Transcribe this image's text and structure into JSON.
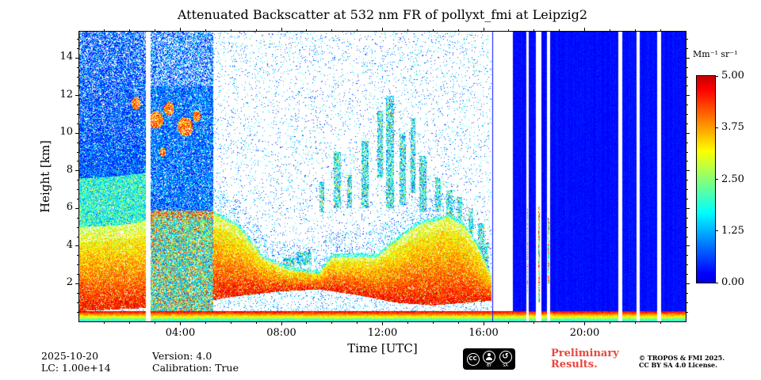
{
  "chart_data": {
    "type": "heatmap",
    "title": "Attenuated Backscatter at 532 nm FR of pollyxt_fmi at Leipzig2",
    "xlabel": "Time [UTC]",
    "ylabel": "Height [km]",
    "x_range_hours": [
      0,
      24
    ],
    "y_range_km": [
      0,
      15.4
    ],
    "x_major_ticks": [
      {
        "hour": 4,
        "label": "04:00"
      },
      {
        "hour": 8,
        "label": "08:00"
      },
      {
        "hour": 12,
        "label": "12:00"
      },
      {
        "hour": 16,
        "label": "16:00"
      },
      {
        "hour": 20,
        "label": "20:00"
      }
    ],
    "x_minor_step": 1,
    "y_major_ticks": [
      2,
      4,
      6,
      8,
      10,
      12,
      14
    ],
    "y_minor_step": 0.5,
    "colorbar": {
      "label": "Mm⁻¹ sr⁻¹",
      "min": 0,
      "max": 5,
      "ticks": [
        0,
        1.25,
        2.5,
        3.75,
        5
      ],
      "colormap": "jet-like (blue→cyan→green→yellow→orange→red)"
    },
    "features": {
      "surface_layer_top_km": 0.55,
      "aerosol_top_km": [
        [
          0,
          5.0
        ],
        [
          1.5,
          5.1
        ],
        [
          2.6,
          5.3
        ],
        [
          2.82,
          5.9
        ],
        [
          5.3,
          5.9
        ],
        [
          6.3,
          5.2
        ],
        [
          7.3,
          3.5
        ],
        [
          8.3,
          2.9
        ],
        [
          9.5,
          2.7
        ],
        [
          10.0,
          3.6
        ],
        [
          11.8,
          3.6
        ],
        [
          12.5,
          4.4
        ],
        [
          13.4,
          5.3
        ],
        [
          14.6,
          5.7
        ],
        [
          15.2,
          5.3
        ],
        [
          15.7,
          4.3
        ],
        [
          16.3,
          2.6
        ]
      ],
      "aerosol_bottom_km": [
        [
          0,
          0.55
        ],
        [
          4,
          0.8
        ],
        [
          6,
          1.3
        ],
        [
          8,
          1.6
        ],
        [
          9.5,
          1.7
        ],
        [
          11,
          1.4
        ],
        [
          12.5,
          1.0
        ],
        [
          14,
          0.85
        ],
        [
          16.3,
          1.1
        ]
      ],
      "dense_noise_band1_hours": [
        0,
        2.62
      ],
      "dense_noise_band2_hours": [
        2.82,
        5.3
      ],
      "calibration_gap_hours": [
        2.62,
        2.82
      ],
      "signal_gap_hours": [
        16.3,
        17.15
      ],
      "rain_start_hour": 17.15,
      "white_gaps_hours": [
        [
          2.62,
          2.82
        ],
        [
          17.7,
          17.78
        ],
        [
          18.08,
          18.3
        ],
        [
          18.5,
          18.63
        ],
        [
          21.33,
          21.5
        ],
        [
          22.05,
          22.17
        ],
        [
          22.88,
          23.02
        ]
      ],
      "cloud_columns": [
        [
          8.3,
          0.25,
          2.9,
          3.4
        ],
        [
          8.9,
          0.3,
          3.0,
          3.7
        ],
        [
          9.6,
          0.1,
          5.8,
          7.4
        ],
        [
          10.2,
          0.14,
          6.0,
          9.0
        ],
        [
          10.7,
          0.1,
          6.0,
          7.8
        ],
        [
          11.3,
          0.14,
          6.0,
          9.6
        ],
        [
          11.9,
          0.1,
          7.6,
          11.2
        ],
        [
          12.3,
          0.16,
          6.0,
          12.0
        ],
        [
          12.8,
          0.14,
          6.2,
          10.0
        ],
        [
          13.2,
          0.1,
          6.8,
          10.8
        ],
        [
          13.6,
          0.14,
          5.8,
          8.8
        ],
        [
          14.2,
          0.1,
          5.8,
          7.6
        ],
        [
          14.65,
          0.13,
          4.8,
          7.0
        ],
        [
          15.05,
          0.1,
          4.2,
          6.6
        ],
        [
          15.5,
          0.1,
          3.4,
          6.0
        ],
        [
          15.9,
          0.12,
          2.8,
          5.2
        ],
        [
          16.1,
          0.1,
          2.6,
          4.2
        ]
      ],
      "orange_patches": [
        [
          2.25,
          11.6,
          0.18,
          0.35
        ],
        [
          3.05,
          10.7,
          0.28,
          0.45
        ],
        [
          3.55,
          11.3,
          0.2,
          0.35
        ],
        [
          4.2,
          10.35,
          0.3,
          0.5
        ],
        [
          4.65,
          10.9,
          0.15,
          0.3
        ],
        [
          3.3,
          9.0,
          0.12,
          0.25
        ]
      ],
      "thin_columns": [
        {
          "t": 16.36,
          "w": 0.05,
          "h0": 0,
          "h1": 15.4,
          "kind": "blue"
        },
        {
          "t": 17.74,
          "w": 0.06,
          "h0": 1.5,
          "h1": 6.0,
          "kind": "mixed"
        },
        {
          "t": 18.19,
          "w": 0.07,
          "h0": 1.0,
          "h1": 6.2,
          "kind": "mixed"
        },
        {
          "t": 18.56,
          "w": 0.06,
          "h0": 2.0,
          "h1": 5.5,
          "kind": "mixed"
        }
      ]
    }
  },
  "footer": {
    "date": "2025-10-20",
    "lc": "LC: 1.00e+14",
    "version": "Version: 4.0",
    "calibration": "Calibration: True",
    "preliminary_line1": "Preliminary",
    "preliminary_line2": "Results.",
    "copyright_line1": "© TROPOS & FMI 2025.",
    "copyright_line2": "CC BY SA 4.0 License.",
    "cc_badge": {
      "cc": "CC",
      "by": "BY",
      "sa": "SA",
      "sa_glyph": "↺"
    }
  },
  "colors": {
    "preliminary_red": "#e8463c",
    "frame": "#000000",
    "badge_bg": "#000000"
  }
}
